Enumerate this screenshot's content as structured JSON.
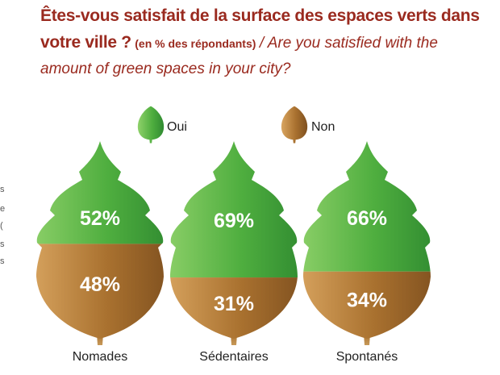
{
  "title": {
    "fr": "Êtes-vous satisfait de la surface des espaces verts dans votre ville ?",
    "note": "(en % des répondants)",
    "en": "/ Are you satisfied with the amount of green spaces in your city?"
  },
  "colors": {
    "title": "#9a2a1f",
    "oui": "#5cb548",
    "non": "#a9712f"
  },
  "edge_fragments": [
    "s",
    "e",
    "(",
    "s",
    "s"
  ],
  "chart_data": {
    "type": "bar",
    "title": "Êtes-vous satisfait de la surface des espaces verts dans votre ville ? (en % des répondants) / Are you satisfied with the amount of green spaces in your city?",
    "categories": [
      "Nomades",
      "Sédentaires",
      "Spontanés"
    ],
    "series": [
      {
        "name": "Oui",
        "values": [
          52,
          69,
          66
        ],
        "labels": [
          "52%",
          "69%",
          "66%"
        ],
        "color": "#5cb548"
      },
      {
        "name": "Non",
        "values": [
          48,
          31,
          34
        ],
        "labels": [
          "48%",
          "31%",
          "34%"
        ],
        "color": "#a9712f"
      }
    ],
    "stacked": true,
    "unit": "%",
    "legend": "top-center",
    "grid": false
  }
}
